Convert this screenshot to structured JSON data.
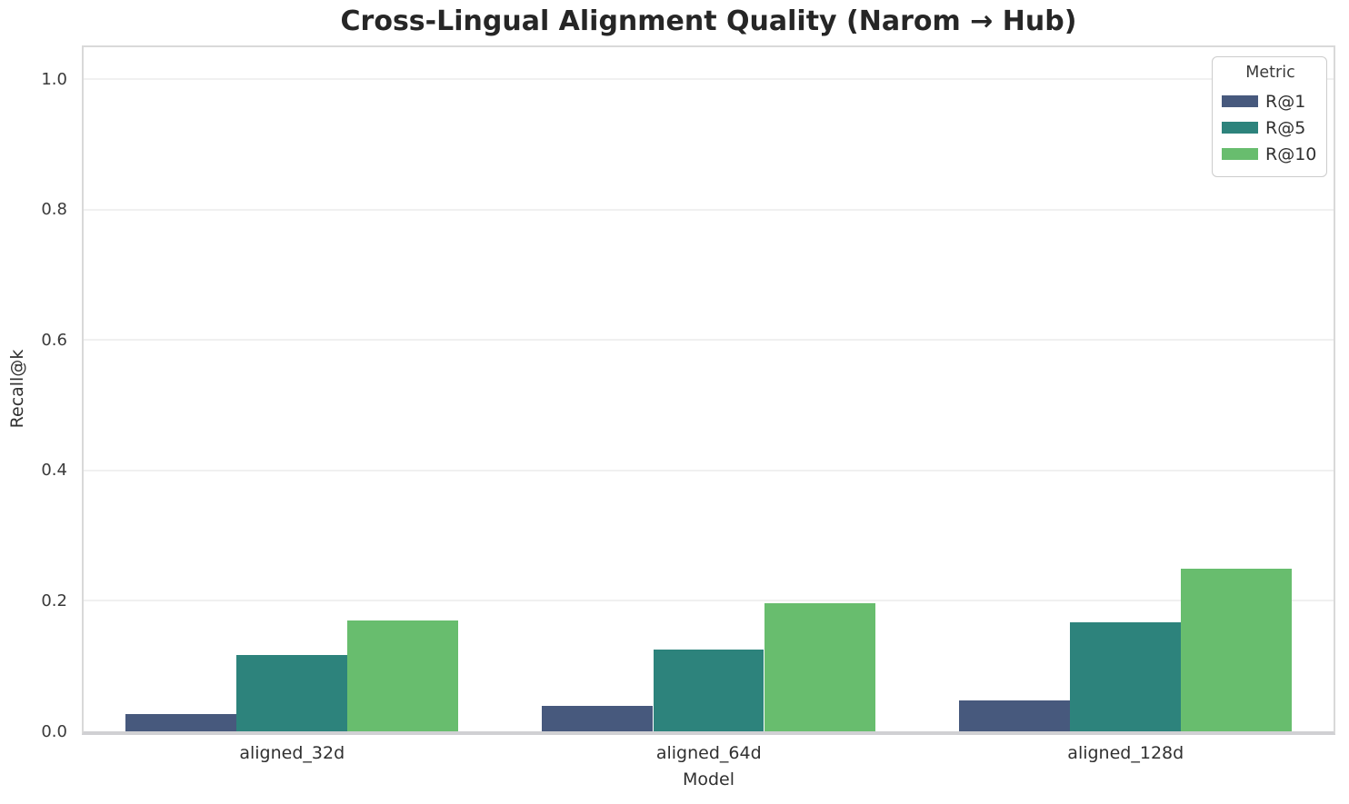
{
  "chart_data": {
    "type": "bar",
    "title": "Cross-Lingual Alignment Quality (Narom → Hub)",
    "xlabel": "Model",
    "ylabel": "Recall@k",
    "categories": [
      "aligned_32d",
      "aligned_64d",
      "aligned_128d"
    ],
    "series": [
      {
        "name": "R@1",
        "color": "#47597d",
        "values": [
          0.026,
          0.039,
          0.048
        ]
      },
      {
        "name": "R@5",
        "color": "#2d837c",
        "values": [
          0.117,
          0.126,
          0.167
        ]
      },
      {
        "name": "R@10",
        "color": "#68bd6e",
        "values": [
          0.17,
          0.196,
          0.25
        ]
      }
    ],
    "ylim": [
      0,
      1.05
    ],
    "yticks": [
      0.0,
      0.2,
      0.4,
      0.6,
      0.8,
      1.0
    ],
    "ytick_labels": [
      "0.0",
      "0.2",
      "0.4",
      "0.6",
      "0.8",
      "1.0"
    ],
    "grid": true,
    "legend": {
      "title": "Metric",
      "entries": [
        "R@1",
        "R@5",
        "R@10"
      ],
      "position": "upper right"
    },
    "style": {
      "grid_color": "#f0f0f0",
      "spine_color": "#d9d9d9",
      "baseline_color": "#d0d0d3",
      "title_color": "#262626",
      "tick_color": "#3a3a3a",
      "background": "#ffffff"
    }
  }
}
